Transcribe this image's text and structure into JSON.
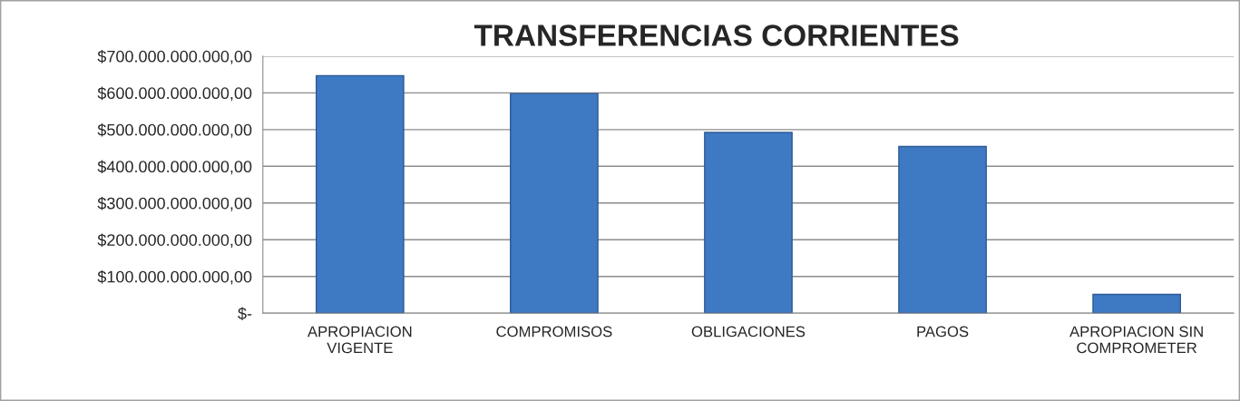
{
  "chart_data": {
    "type": "bar",
    "title": "TRANSFERENCIAS CORRIENTES",
    "categories": [
      "APROPIACION\nVIGENTE",
      "COMPROMISOS",
      "OBLIGACIONES",
      "PAGOS",
      "APROPIACION SIN\nCOMPROMETER"
    ],
    "values": [
      647000000000,
      598000000000,
      492000000000,
      454000000000,
      51000000000
    ],
    "color": "#3e79c4",
    "ylim": [
      0,
      700000000000
    ],
    "yticks": [
      {
        "value": 0,
        "label": "$-"
      },
      {
        "value": 100000000000,
        "label": "$100.000.000.000,00"
      },
      {
        "value": 200000000000,
        "label": "$200.000.000.000,00"
      },
      {
        "value": 300000000000,
        "label": "$300.000.000.000,00"
      },
      {
        "value": 400000000000,
        "label": "$400.000.000.000,00"
      },
      {
        "value": 500000000000,
        "label": "$500.000.000.000,00"
      },
      {
        "value": 600000000000,
        "label": "$600.000.000.000,00"
      },
      {
        "value": 700000000000,
        "label": "$700.000.000.000,00"
      }
    ],
    "grid": "y"
  }
}
